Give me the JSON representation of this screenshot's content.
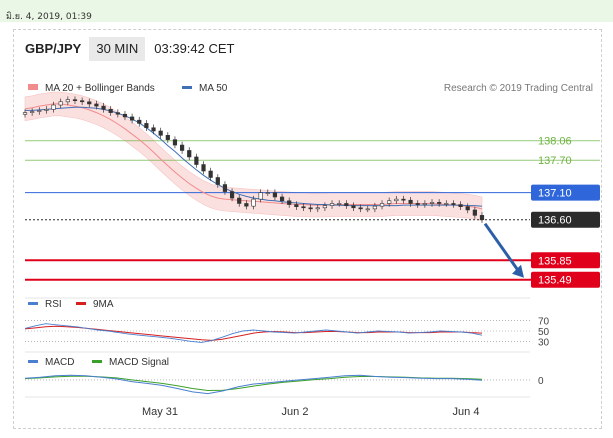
{
  "header": {
    "datetime": "มิ.ย. 4, 2019, 01:39",
    "symbol": "GBP/JPY",
    "timeframe": "30 MIN",
    "clock": "03:39:42 CET"
  },
  "chart_data": {
    "type": "line",
    "credit": "Research © 2019 Trading Central",
    "x_ticks": [
      "May 31",
      "Jun 2",
      "Jun 4"
    ],
    "price_panel": {
      "legend": [
        {
          "name": "MA 20 + Bollinger Bands",
          "color": "#f28b8b"
        },
        {
          "name": "MA 50",
          "color": "#3f6fb5"
        }
      ],
      "ylim": [
        135.3,
        138.85
      ],
      "close": [
        138.58,
        138.6,
        138.62,
        138.64,
        138.72,
        138.78,
        138.82,
        138.8,
        138.78,
        138.74,
        138.7,
        138.64,
        138.58,
        138.55,
        138.5,
        138.44,
        138.38,
        138.3,
        138.24,
        138.16,
        138.08,
        137.98,
        137.88,
        137.76,
        137.62,
        137.5,
        137.38,
        137.25,
        137.12,
        137.0,
        136.9,
        136.85,
        136.98,
        137.1,
        137.1,
        137.02,
        136.95,
        136.88,
        136.84,
        136.82,
        136.8,
        136.82,
        136.86,
        136.9,
        136.9,
        136.86,
        136.82,
        136.8,
        136.8,
        136.85,
        136.9,
        136.95,
        136.98,
        136.96,
        136.9,
        136.88,
        136.9,
        136.92,
        136.9,
        136.9,
        136.88,
        136.84,
        136.78,
        136.68,
        136.6
      ],
      "ma20": [
        138.65,
        138.67,
        138.7,
        138.72,
        138.74,
        138.74,
        138.72,
        138.7,
        138.67,
        138.63,
        138.58,
        138.52,
        138.45,
        138.37,
        138.28,
        138.18,
        138.08,
        137.97,
        137.85,
        137.72,
        137.6,
        137.48,
        137.37,
        137.27,
        137.18,
        137.1,
        137.04,
        137.0,
        136.98,
        136.97,
        136.96,
        136.95,
        136.94,
        136.93,
        136.92,
        136.91,
        136.9,
        136.89,
        136.88,
        136.88,
        136.87,
        136.87,
        136.87,
        136.88,
        136.88,
        136.88,
        136.88,
        136.88,
        136.88,
        136.88,
        136.88,
        136.89,
        136.9,
        136.9,
        136.9,
        136.9,
        136.9,
        136.9,
        136.89,
        136.88,
        136.87,
        136.86,
        136.85,
        136.83,
        136.8
      ],
      "ma50": [
        138.62,
        138.62,
        138.63,
        138.64,
        138.65,
        138.66,
        138.67,
        138.68,
        138.68,
        138.67,
        138.66,
        138.64,
        138.61,
        138.57,
        138.52,
        138.46,
        138.39,
        138.3,
        138.2,
        138.09,
        137.97,
        137.86,
        137.74,
        137.63,
        137.52,
        137.42,
        137.33,
        137.25,
        137.18,
        137.12,
        137.07,
        137.03,
        137.0,
        136.98,
        136.96,
        136.95,
        136.93,
        136.92,
        136.91,
        136.9,
        136.89,
        136.88,
        136.88,
        136.87,
        136.87,
        136.86,
        136.86,
        136.86,
        136.86,
        136.86,
        136.86,
        136.86,
        136.86,
        136.87,
        136.87,
        136.87,
        136.87,
        136.87,
        136.87,
        136.87,
        136.87,
        136.87,
        136.86,
        136.86,
        136.85
      ],
      "levels": [
        {
          "value": 138.06,
          "label": "138.06",
          "color": "#6cb33f",
          "style": "plain"
        },
        {
          "value": 137.7,
          "label": "137.70",
          "color": "#6cb33f",
          "style": "plain"
        },
        {
          "value": 137.1,
          "label": "137.10",
          "color": "#2f66d9",
          "style": "box"
        },
        {
          "value": 136.6,
          "label": "136.60",
          "color": "#2b2b2b",
          "style": "box-dark"
        },
        {
          "value": 135.85,
          "label": "135.85",
          "color": "#e0001b",
          "style": "box"
        },
        {
          "value": 135.49,
          "label": "135.49",
          "color": "#e0001b",
          "style": "box"
        }
      ],
      "arrow": {
        "from": [
          64,
          136.6
        ],
        "to": [
          70,
          135.49
        ],
        "color": "#2d5fa8"
      }
    },
    "rsi_panel": {
      "legend": [
        {
          "name": "RSI",
          "color": "#4a7fd0"
        },
        {
          "name": "9MA",
          "color": "#d62020"
        }
      ],
      "ylim": [
        25,
        75
      ],
      "ticks": [
        70,
        50,
        30
      ],
      "rsi": [
        55,
        60,
        64,
        62,
        60,
        58,
        55,
        52,
        50,
        47,
        44,
        42,
        40,
        38,
        36,
        33,
        30,
        28,
        32,
        38,
        45,
        50,
        52,
        50,
        48,
        47,
        46,
        48,
        50,
        52,
        50,
        48,
        46,
        48,
        50,
        49,
        48,
        46,
        47,
        48,
        50,
        49,
        48,
        46,
        42
      ],
      "ma9": [
        54,
        56,
        58,
        59,
        58,
        57,
        55,
        53,
        51,
        49,
        47,
        45,
        43,
        41,
        39,
        37,
        35,
        33,
        32,
        34,
        38,
        42,
        46,
        48,
        49,
        48,
        47,
        47,
        48,
        49,
        49,
        48,
        47,
        47,
        48,
        48,
        48,
        47,
        47,
        47,
        48,
        48,
        48,
        47,
        46
      ]
    },
    "macd_panel": {
      "legend": [
        {
          "name": "MACD",
          "color": "#4a7fd0"
        },
        {
          "name": "MACD Signal",
          "color": "#3aa02a"
        }
      ],
      "ylim": [
        -0.5,
        0.35
      ],
      "ticks": [
        0
      ],
      "macd": [
        0.05,
        0.08,
        0.12,
        0.14,
        0.12,
        0.08,
        0.03,
        -0.05,
        -0.1,
        -0.16,
        -0.25,
        -0.35,
        -0.4,
        -0.32,
        -0.2,
        -0.12,
        -0.08,
        -0.04,
        0.0,
        0.04,
        0.08,
        0.12,
        0.14,
        0.1,
        0.08,
        0.07,
        0.05,
        0.04,
        0.04,
        0.02,
        -0.01
      ],
      "signal": [
        0.04,
        0.06,
        0.09,
        0.11,
        0.11,
        0.09,
        0.06,
        0.0,
        -0.05,
        -0.1,
        -0.17,
        -0.25,
        -0.31,
        -0.3,
        -0.25,
        -0.18,
        -0.12,
        -0.07,
        -0.03,
        0.01,
        0.04,
        0.08,
        0.1,
        0.1,
        0.09,
        0.08,
        0.06,
        0.05,
        0.05,
        0.04,
        0.02
      ]
    }
  }
}
